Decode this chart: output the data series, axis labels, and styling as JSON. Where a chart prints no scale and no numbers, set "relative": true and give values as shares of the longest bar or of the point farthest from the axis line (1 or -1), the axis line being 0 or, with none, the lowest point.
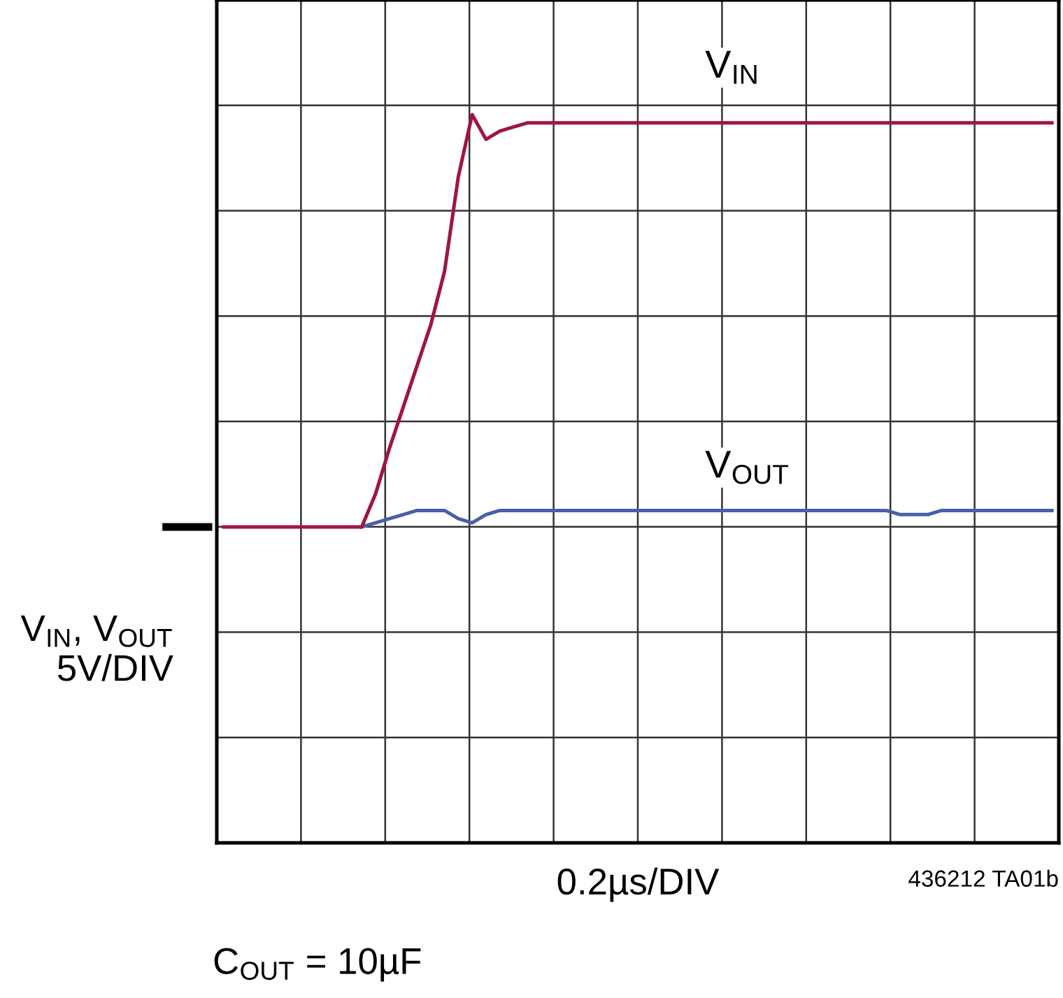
{
  "chart_data": {
    "type": "line",
    "relative": true,
    "grid": true,
    "legend": false,
    "marker": "none",
    "line_style": "solid",
    "ylabel": "V$_{IN}$, V$_{OUT}$\n5V/DIV",
    "annotations": [
      "0.2µs/DIV",
      "436212 TA01b",
      "C$_{OUT}$ = 10µF"
    ],
    "categories": [
      null,
      null,
      null,
      null,
      null,
      null,
      null,
      null,
      null,
      null,
      null,
      null,
      null,
      null,
      null,
      null,
      null,
      null,
      null,
      null,
      null,
      null,
      null,
      null,
      null,
      null,
      null,
      null,
      null,
      null,
      null,
      null,
      null,
      null,
      null,
      null,
      null,
      null,
      null,
      null,
      null,
      null,
      null,
      null,
      null,
      null,
      null,
      null,
      null,
      null,
      null,
      null,
      null,
      null,
      null,
      null,
      null,
      null,
      null,
      null,
      null
    ],
    "series": [
      {
        "name": "V$_{IN}$",
        "color": "#a0153e",
        "values": [
          0,
          0,
          0,
          0,
          0,
          0,
          0,
          0,
          0,
          0,
          0,
          0.08,
          0.19,
          0.29,
          0.39,
          0.49,
          0.62,
          0.85,
          1.0,
          0.94,
          0.96,
          0.97,
          0.98,
          0.98,
          0.98,
          0.98,
          0.98,
          0.98,
          0.98,
          0.98,
          0.98,
          0.98,
          0.98,
          0.98,
          0.98,
          0.98,
          0.98,
          0.98,
          0.98,
          0.98,
          0.98,
          0.98,
          0.98,
          0.98,
          0.98,
          0.98,
          0.98,
          0.98,
          0.98,
          0.98,
          0.98,
          0.98,
          0.98,
          0.98,
          0.98,
          0.98,
          0.98,
          0.98,
          0.98,
          0.98,
          0.98
        ]
      },
      {
        "name": "V$_{OUT}$",
        "color": "#4a5fa8",
        "values": [
          null,
          null,
          null,
          null,
          null,
          null,
          null,
          null,
          null,
          null,
          0,
          0.01,
          0.02,
          0.03,
          0.04,
          0.04,
          0.04,
          0.02,
          0.01,
          0.03,
          0.04,
          0.04,
          0.04,
          0.04,
          0.04,
          0.04,
          0.04,
          0.04,
          0.04,
          0.04,
          0.04,
          0.04,
          0.04,
          0.04,
          0.04,
          0.04,
          0.04,
          0.04,
          0.04,
          0.04,
          0.04,
          0.04,
          0.04,
          0.04,
          0.04,
          0.04,
          0.04,
          0.04,
          0.04,
          0.03,
          0.03,
          0.03,
          0.04,
          0.04,
          0.04,
          0.04,
          0.04,
          0.04,
          0.04,
          0.04,
          0.04
        ]
      }
    ]
  }
}
